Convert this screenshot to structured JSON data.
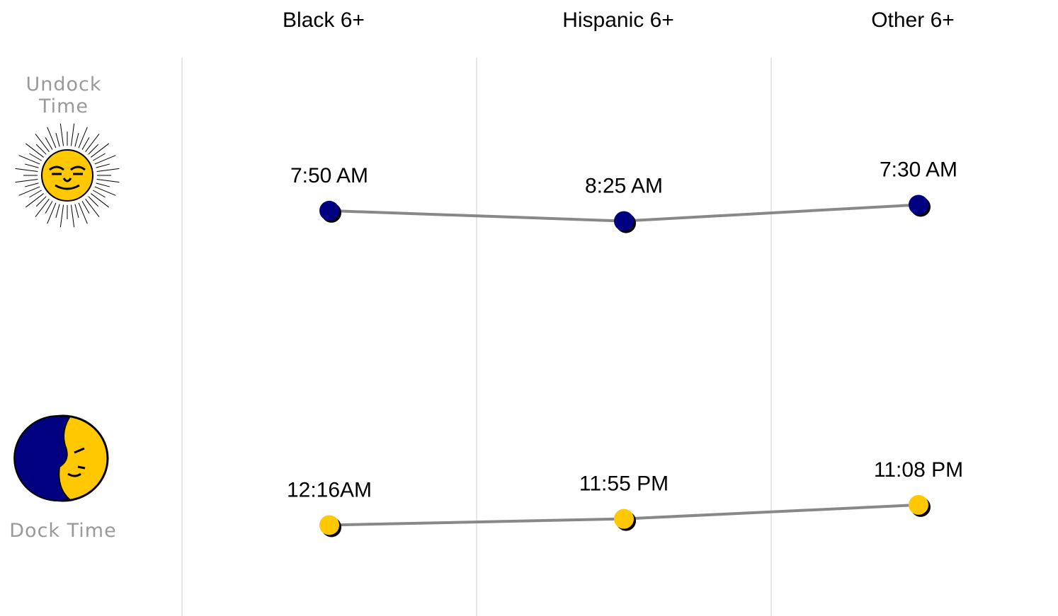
{
  "chart_data": {
    "type": "line",
    "categories": [
      "Black 6+",
      "Hispanic 6+",
      "Other 6+"
    ],
    "series": [
      {
        "name": "Undock Time",
        "color": "#000080",
        "values": [
          470,
          505,
          450
        ],
        "value_labels": [
          "7:50 AM",
          "8:25 AM",
          "7:30 AM"
        ]
      },
      {
        "name": "Dock Time",
        "color": "#ffc800",
        "values": [
          1456,
          1435,
          1388
        ],
        "value_labels": [
          "12:16AM",
          "11:55 PM",
          "11:08 PM"
        ]
      }
    ]
  }
}
